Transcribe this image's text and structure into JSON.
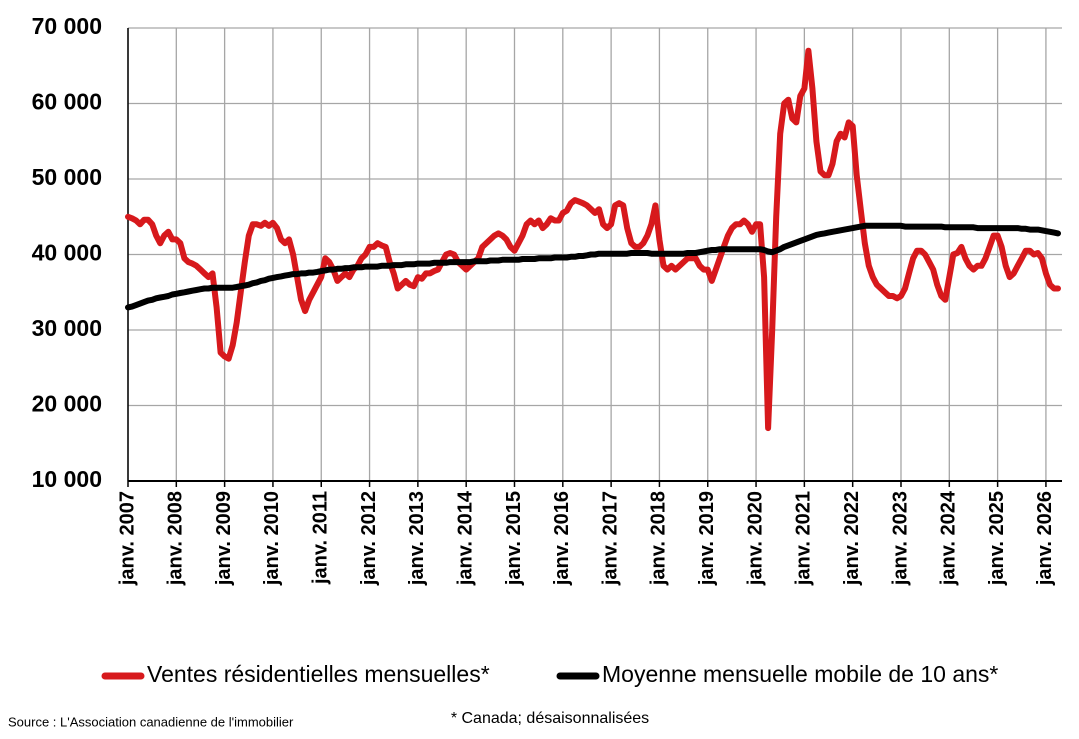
{
  "chart_data": {
    "type": "line",
    "source": "Source : L'Association canadienne de l'immobilier",
    "footnote": "* Canada; désaisonnalisées",
    "categories": [
      "janv. 2007",
      null,
      null,
      null,
      null,
      null,
      null,
      null,
      null,
      null,
      null,
      null,
      "janv. 2008",
      null,
      null,
      null,
      null,
      null,
      null,
      null,
      null,
      null,
      null,
      null,
      "janv. 2009",
      null,
      null,
      null,
      null,
      null,
      null,
      null,
      null,
      null,
      null,
      null,
      "janv. 2010",
      null,
      null,
      null,
      null,
      null,
      null,
      null,
      null,
      null,
      null,
      null,
      "janv. 2011",
      null,
      null,
      null,
      null,
      null,
      null,
      null,
      null,
      null,
      null,
      null,
      "janv. 2012",
      null,
      null,
      null,
      null,
      null,
      null,
      null,
      null,
      null,
      null,
      null,
      "janv. 2013",
      null,
      null,
      null,
      null,
      null,
      null,
      null,
      null,
      null,
      null,
      null,
      "janv. 2014",
      null,
      null,
      null,
      null,
      null,
      null,
      null,
      null,
      null,
      null,
      null,
      "janv. 2015",
      null,
      null,
      null,
      null,
      null,
      null,
      null,
      null,
      null,
      null,
      null,
      "janv. 2016",
      null,
      null,
      null,
      null,
      null,
      null,
      null,
      null,
      null,
      null,
      null,
      "janv. 2017",
      null,
      null,
      null,
      null,
      null,
      null,
      null,
      null,
      null,
      null,
      null,
      "janv. 2018",
      null,
      null,
      null,
      null,
      null,
      null,
      null,
      null,
      null,
      null,
      null,
      "janv. 2019",
      null,
      null,
      null,
      null,
      null,
      null,
      null,
      null,
      null,
      null,
      null,
      "janv. 2020",
      null,
      null,
      null,
      null,
      null,
      null,
      null,
      null,
      null,
      null,
      null,
      "janv. 2021",
      null,
      null,
      null,
      null,
      null,
      null,
      null,
      null,
      null,
      null,
      null,
      "janv. 2022",
      null,
      null,
      null,
      null,
      null,
      null,
      null,
      null,
      null,
      null,
      null,
      "janv. 2023",
      null,
      null,
      null,
      null,
      null,
      null,
      null,
      null,
      null,
      null,
      null,
      "janv. 2024",
      null,
      null,
      null,
      null,
      null,
      null,
      null,
      null,
      null,
      null,
      null,
      "janv. 2025",
      null,
      null,
      null,
      null,
      null,
      null,
      null,
      null,
      null,
      null,
      null,
      "janv. 2026",
      null,
      null,
      null
    ],
    "series": [
      {
        "name": "Ventes résidentielles mensuelles*",
        "color": "#d7191c",
        "values": [
          45000,
          44800,
          44500,
          44000,
          44600,
          44600,
          44000,
          42500,
          41500,
          42500,
          43000,
          42000,
          42000,
          41500,
          39500,
          39000,
          38800,
          38500,
          38000,
          37500,
          37000,
          37500,
          33000,
          27000,
          26500,
          26200,
          28000,
          31000,
          35000,
          39000,
          42500,
          44000,
          44000,
          43800,
          44200,
          43800,
          44200,
          43500,
          42000,
          41500,
          42000,
          40000,
          37000,
          34000,
          32500,
          34000,
          35000,
          36000,
          37000,
          39500,
          39000,
          38000,
          36500,
          37000,
          37500,
          37000,
          38000,
          38500,
          39500,
          40000,
          41000,
          41000,
          41500,
          41200,
          41000,
          39000,
          37500,
          35500,
          36000,
          36500,
          36000,
          35800,
          37000,
          36800,
          37500,
          37500,
          37800,
          38000,
          39000,
          40000,
          40200,
          40000,
          39000,
          38500,
          38000,
          38500,
          39000,
          39500,
          41000,
          41500,
          42000,
          42500,
          42800,
          42500,
          42000,
          41000,
          40500,
          41500,
          42500,
          44000,
          44500,
          44000,
          44500,
          43500,
          44000,
          44800,
          44500,
          44500,
          45500,
          45800,
          46800,
          47200,
          47000,
          46800,
          46500,
          46000,
          45500,
          46000,
          44000,
          43500,
          44000,
          46500,
          46800,
          46500,
          43500,
          41500,
          41000,
          41000,
          41500,
          42500,
          44000,
          46500,
          42000,
          38500,
          38000,
          38500,
          38000,
          38500,
          39000,
          39500,
          39500,
          39500,
          38500,
          38000,
          38000,
          36500,
          38000,
          39500,
          41000,
          42500,
          43500,
          44000,
          44000,
          44500,
          44000,
          43000,
          44000,
          44000,
          37000,
          17000,
          30000,
          45000,
          56000,
          60000,
          60500,
          58000,
          57500,
          61000,
          62000,
          67000,
          62000,
          55000,
          51000,
          50500,
          50500,
          52000,
          55000,
          56000,
          55500,
          57500,
          57000,
          50500,
          46000,
          41500,
          38500,
          37000,
          36000,
          35500,
          35000,
          34500,
          34500,
          34200,
          34500,
          35500,
          37500,
          39500,
          40500,
          40500,
          40000,
          39000,
          38000,
          36000,
          34500,
          34000,
          37000,
          40000,
          40200,
          41000,
          39500,
          38500,
          38000,
          38500,
          38500,
          39500,
          41000,
          42500,
          42500,
          41000,
          38500,
          37000,
          37500,
          38500,
          39500,
          40500,
          40500,
          40000,
          40200,
          39500,
          37500,
          36000,
          35500,
          35500
        ]
      },
      {
        "name": "Moyenne mensuelle mobile de 10 ans*",
        "color": "#000000",
        "values": [
          33000,
          33100,
          33300,
          33500,
          33700,
          33900,
          34000,
          34200,
          34300,
          34400,
          34500,
          34700,
          34800,
          34900,
          35000,
          35100,
          35200,
          35300,
          35400,
          35500,
          35500,
          35600,
          35600,
          35600,
          35600,
          35600,
          35600,
          35700,
          35800,
          35900,
          36000,
          36200,
          36300,
          36500,
          36600,
          36800,
          36900,
          37000,
          37100,
          37200,
          37300,
          37400,
          37400,
          37500,
          37500,
          37600,
          37600,
          37700,
          37800,
          37900,
          38000,
          38000,
          38100,
          38100,
          38200,
          38200,
          38300,
          38300,
          38300,
          38400,
          38400,
          38400,
          38400,
          38500,
          38500,
          38500,
          38600,
          38600,
          38600,
          38700,
          38700,
          38700,
          38800,
          38800,
          38800,
          38800,
          38900,
          38900,
          38900,
          38900,
          39000,
          39000,
          39000,
          39000,
          39000,
          39000,
          39100,
          39100,
          39100,
          39100,
          39200,
          39200,
          39200,
          39300,
          39300,
          39300,
          39300,
          39300,
          39400,
          39400,
          39400,
          39400,
          39500,
          39500,
          39500,
          39500,
          39600,
          39600,
          39600,
          39600,
          39700,
          39700,
          39800,
          39800,
          39900,
          40000,
          40000,
          40100,
          40100,
          40100,
          40100,
          40100,
          40100,
          40100,
          40100,
          40200,
          40200,
          40200,
          40200,
          40200,
          40100,
          40100,
          40100,
          40100,
          40100,
          40100,
          40100,
          40100,
          40100,
          40200,
          40200,
          40200,
          40300,
          40400,
          40500,
          40600,
          40600,
          40700,
          40700,
          40700,
          40700,
          40700,
          40700,
          40700,
          40700,
          40700,
          40700,
          40700,
          40600,
          40400,
          40300,
          40500,
          40700,
          41000,
          41200,
          41400,
          41600,
          41800,
          42000,
          42200,
          42400,
          42600,
          42700,
          42800,
          42900,
          43000,
          43100,
          43200,
          43300,
          43400,
          43500,
          43600,
          43700,
          43800,
          43800,
          43800,
          43800,
          43800,
          43800,
          43800,
          43800,
          43800,
          43800,
          43700,
          43700,
          43700,
          43700,
          43700,
          43700,
          43700,
          43700,
          43700,
          43700,
          43600,
          43600,
          43600,
          43600,
          43600,
          43600,
          43600,
          43600,
          43500,
          43500,
          43500,
          43500,
          43500,
          43500,
          43500,
          43500,
          43500,
          43500,
          43500,
          43400,
          43400,
          43300,
          43300,
          43300,
          43200,
          43100,
          43000,
          42900,
          42800
        ]
      }
    ],
    "ylim": [
      10000,
      70000
    ],
    "yticks": [
      {
        "value": 10000,
        "label": "10 000"
      },
      {
        "value": 20000,
        "label": "20 000"
      },
      {
        "value": 30000,
        "label": "30 000"
      },
      {
        "value": 40000,
        "label": "40 000"
      },
      {
        "value": 50000,
        "label": "50 000"
      },
      {
        "value": 60000,
        "label": "60 000"
      },
      {
        "value": 70000,
        "label": "70 000"
      }
    ],
    "grid": true
  }
}
